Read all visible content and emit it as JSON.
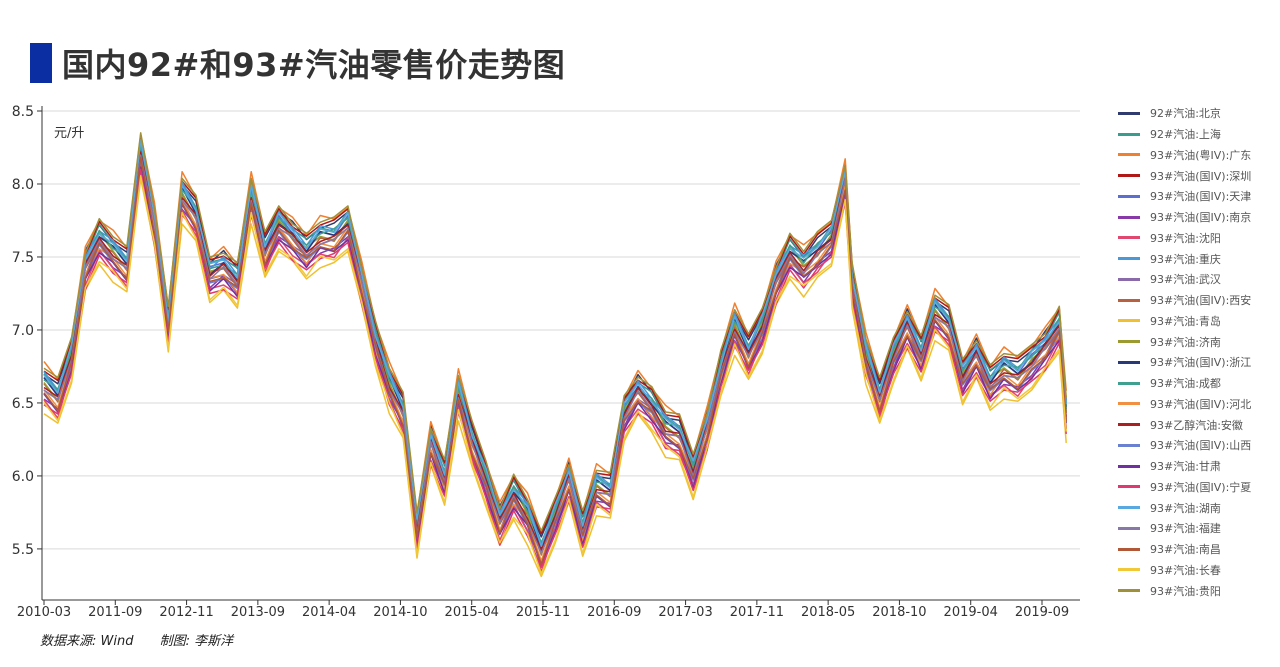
{
  "title": "国内92#和93#汽油零售价走势图",
  "accent_color": "#0b2fa3",
  "source_text": "数据来源: Wind",
  "author_text": "制图: 李斯洋",
  "chart_data": {
    "type": "line",
    "ylabel": "元/升",
    "ylim": [
      5.15,
      8.5
    ],
    "yticks": [
      5.5,
      6.0,
      6.5,
      7.0,
      7.5,
      8.0,
      8.5
    ],
    "ytick_labels": [
      "5.5",
      "6.0",
      "6.5",
      "7.0",
      "7.5",
      "8.0",
      "8.5"
    ],
    "x_ticks": [
      "2010-03",
      "2011-09",
      "2012-11",
      "2013-09",
      "2014-04",
      "2014-10",
      "2015-04",
      "2015-11",
      "2016-09",
      "2017-03",
      "2017-11",
      "2018-05",
      "2018-10",
      "2019-04",
      "2019-09"
    ],
    "grid": true,
    "legend_position": "right",
    "base_x": [
      0,
      2,
      4,
      6,
      8,
      10,
      12,
      14,
      16,
      18,
      20,
      22,
      24,
      26,
      28,
      30,
      32,
      34,
      36,
      38,
      40,
      42,
      44,
      46,
      48,
      50,
      52,
      54,
      56,
      58,
      60,
      62,
      64,
      66,
      68,
      70,
      72,
      74,
      76,
      78,
      80,
      82,
      84,
      86,
      88,
      90,
      92,
      94,
      96,
      98,
      100,
      102,
      104,
      106,
      108,
      110,
      112,
      114,
      116
    ],
    "base_values": [
      6.6,
      6.5,
      6.8,
      7.4,
      7.6,
      7.5,
      7.4,
      8.2,
      7.7,
      7.0,
      7.9,
      7.75,
      7.35,
      7.4,
      7.3,
      7.9,
      7.5,
      7.7,
      7.6,
      7.5,
      7.6,
      7.6,
      7.7,
      7.3,
      6.9,
      6.6,
      6.4,
      5.6,
      6.2,
      5.95,
      6.55,
      6.2,
      5.95,
      5.65,
      5.85,
      5.7,
      5.45,
      5.7,
      5.95,
      5.6,
      5.9,
      5.85,
      6.4,
      6.55,
      6.45,
      6.3,
      6.25,
      6.0,
      6.3,
      6.7,
      7.0,
      6.8,
      7.0,
      7.3,
      7.5,
      7.4,
      7.5,
      7.6,
      8.0
    ],
    "base_x_2": [
      117,
      119,
      121,
      123,
      125,
      127,
      129,
      131,
      133,
      135,
      137,
      139,
      141,
      143,
      145,
      147,
      148
    ],
    "base_values_2": [
      7.3,
      6.8,
      6.5,
      6.8,
      7.0,
      6.8,
      7.1,
      7.0,
      6.65,
      6.8,
      6.6,
      6.7,
      6.65,
      6.75,
      6.85,
      7.0,
      6.4
    ],
    "series": [
      {
        "name": "92#汽油:北京",
        "color": "#2f3b6e",
        "offset": 0.12
      },
      {
        "name": "92#汽油:上海",
        "color": "#3a9c8c",
        "offset": 0.1
      },
      {
        "name": "93#汽油(粤IV):广东",
        "color": "#f08030",
        "offset": 0.16
      },
      {
        "name": "93#汽油(国IV):深圳",
        "color": "#b01818",
        "offset": 0.13
      },
      {
        "name": "93#汽油(国IV):天津",
        "color": "#5a6fd0",
        "offset": 0.06
      },
      {
        "name": "93#汽油(国IV):南京",
        "color": "#8a3aa8",
        "offset": -0.05
      },
      {
        "name": "93#汽油:沈阳",
        "color": "#e04870",
        "offset": -0.08
      },
      {
        "name": "93#汽油:重庆",
        "color": "#4a98d8",
        "offset": 0.09
      },
      {
        "name": "93#汽油:武汉",
        "color": "#8a6aa8",
        "offset": 0.0
      },
      {
        "name": "93#汽油(国IV):西安",
        "color": "#b86040",
        "offset": 0.02
      },
      {
        "name": "93#汽油:青岛",
        "color": "#f0c030",
        "offset": -0.15
      },
      {
        "name": "93#汽油:济南",
        "color": "#9a9a30",
        "offset": 0.04
      },
      {
        "name": "93#汽油(国IV):浙江",
        "color": "#283878",
        "offset": 0.05
      },
      {
        "name": "93#汽油:成都",
        "color": "#40a090",
        "offset": 0.07
      },
      {
        "name": "93#汽油(国IV):河北",
        "color": "#f09040",
        "offset": -0.02
      },
      {
        "name": "93#乙醇汽油:安徽",
        "color": "#a82020",
        "offset": 0.03
      },
      {
        "name": "93#汽油(国IV):山西",
        "color": "#6a80d0",
        "offset": -0.04
      },
      {
        "name": "93#汽油:甘肃",
        "color": "#7030a0",
        "offset": -0.06
      },
      {
        "name": "93#汽油(国IV):宁夏",
        "color": "#e03870",
        "offset": -0.1
      },
      {
        "name": "93#汽油:湖南",
        "color": "#5aa8e0",
        "offset": 0.08
      },
      {
        "name": "93#汽油:福建",
        "color": "#8878a8",
        "offset": 0.01
      },
      {
        "name": "93#汽油:南昌",
        "color": "#b05838",
        "offset": -0.03
      },
      {
        "name": "93#汽油:长春",
        "color": "#f0c838",
        "offset": -0.12
      },
      {
        "name": "93#汽油:贵阳",
        "color": "#a09038",
        "offset": 0.15
      }
    ]
  }
}
